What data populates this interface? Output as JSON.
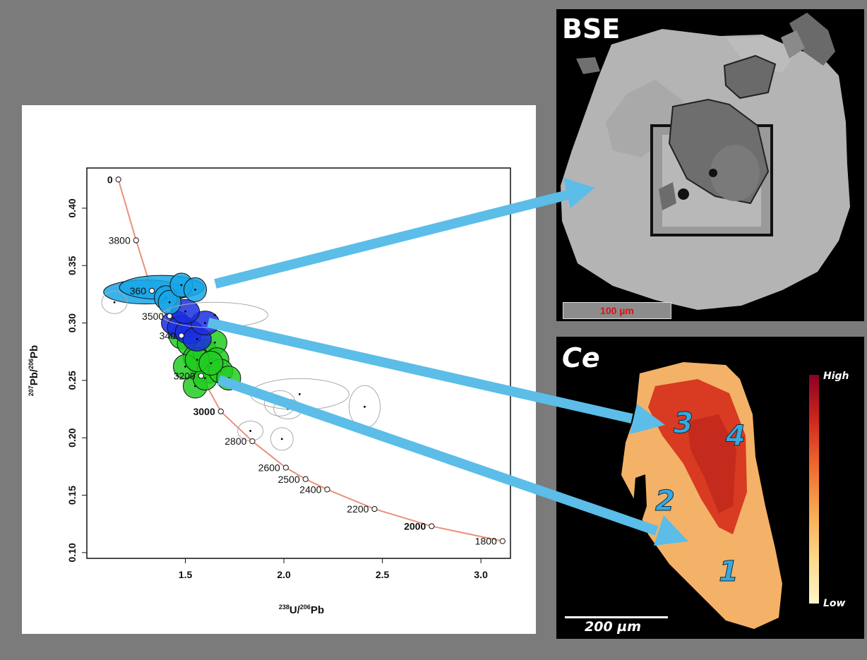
{
  "chart_data": {
    "type": "scatter",
    "title": "",
    "xlabel_main": "U/",
    "xlabel_sup1": "238",
    "xlabel_sup2": "206",
    "xlabel_end": "Pb",
    "ylabel_main": "Pb/",
    "ylabel_sup1": "207",
    "ylabel_sup2": "206",
    "ylabel_end": "Pb",
    "xlim": [
      1.0,
      3.15
    ],
    "ylim": [
      0.095,
      0.435
    ],
    "xticks": [
      1.5,
      2.0,
      2.5,
      3.0
    ],
    "yticks": [
      0.1,
      0.15,
      0.2,
      0.25,
      0.3,
      0.35,
      0.4
    ],
    "concordia_markers": [
      {
        "age": "0",
        "x": 1.16,
        "y": 0.425
      },
      {
        "age": "3800",
        "x": 1.25,
        "y": 0.372
      },
      {
        "age": "360",
        "x": 1.33,
        "y": 0.328
      },
      {
        "age": "3500",
        "x": 1.42,
        "y": 0.306
      },
      {
        "age": "340",
        "x": 1.48,
        "y": 0.289
      },
      {
        "age": "3200",
        "x": 1.58,
        "y": 0.254
      },
      {
        "age": "3000",
        "x": 1.68,
        "y": 0.223
      },
      {
        "age": "2800",
        "x": 1.84,
        "y": 0.197
      },
      {
        "age": "2600",
        "x": 2.01,
        "y": 0.174
      },
      {
        "age": "2500",
        "x": 2.11,
        "y": 0.164
      },
      {
        "age": "2400",
        "x": 2.22,
        "y": 0.155
      },
      {
        "age": "2200",
        "x": 2.46,
        "y": 0.138
      },
      {
        "age": "2000",
        "x": 2.75,
        "y": 0.123
      },
      {
        "age": "1800",
        "x": 3.11,
        "y": 0.11
      }
    ],
    "series": [
      {
        "color": "#22cc22",
        "points": [
          [
            1.48,
            0.288
          ],
          [
            1.52,
            0.282
          ],
          [
            1.55,
            0.27
          ],
          [
            1.58,
            0.262
          ],
          [
            1.6,
            0.275
          ],
          [
            1.62,
            0.258
          ],
          [
            1.65,
            0.283
          ],
          [
            1.66,
            0.268
          ],
          [
            1.55,
            0.245
          ],
          [
            1.6,
            0.252
          ],
          [
            1.68,
            0.258
          ],
          [
            1.72,
            0.252
          ],
          [
            1.5,
            0.262
          ],
          [
            1.56,
            0.268
          ],
          [
            1.63,
            0.265
          ]
        ]
      },
      {
        "color": "#1a2fe0",
        "points": [
          [
            1.45,
            0.3
          ],
          [
            1.48,
            0.296
          ],
          [
            1.52,
            0.292
          ],
          [
            1.56,
            0.286
          ],
          [
            1.6,
            0.3
          ],
          [
            1.5,
            0.31
          ]
        ]
      },
      {
        "color": "#19a6e6",
        "points": [
          [
            1.3,
            0.327
          ],
          [
            1.38,
            0.331
          ],
          [
            1.4,
            0.322
          ],
          [
            1.42,
            0.318
          ],
          [
            1.48,
            0.333
          ],
          [
            1.55,
            0.329
          ]
        ]
      },
      {
        "color": "#999999",
        "points": [
          [
            1.14,
            0.318
          ],
          [
            1.65,
            0.307
          ],
          [
            1.98,
            0.23
          ],
          [
            2.02,
            0.225
          ],
          [
            2.08,
            0.238
          ],
          [
            2.41,
            0.227
          ],
          [
            1.83,
            0.206
          ],
          [
            1.99,
            0.199
          ]
        ]
      }
    ]
  },
  "bse_panel": {
    "title": "BSE",
    "scale_label": "100 µm"
  },
  "ce_panel": {
    "title": "Ce",
    "scale_label": "200 µm",
    "colorbar_high": "High",
    "colorbar_low": "Low",
    "zones": [
      "1",
      "2",
      "3",
      "4"
    ]
  },
  "colors": {
    "background": "#7b7b7b",
    "arrow": "#5bbde8",
    "concordia": "#e8917a"
  }
}
